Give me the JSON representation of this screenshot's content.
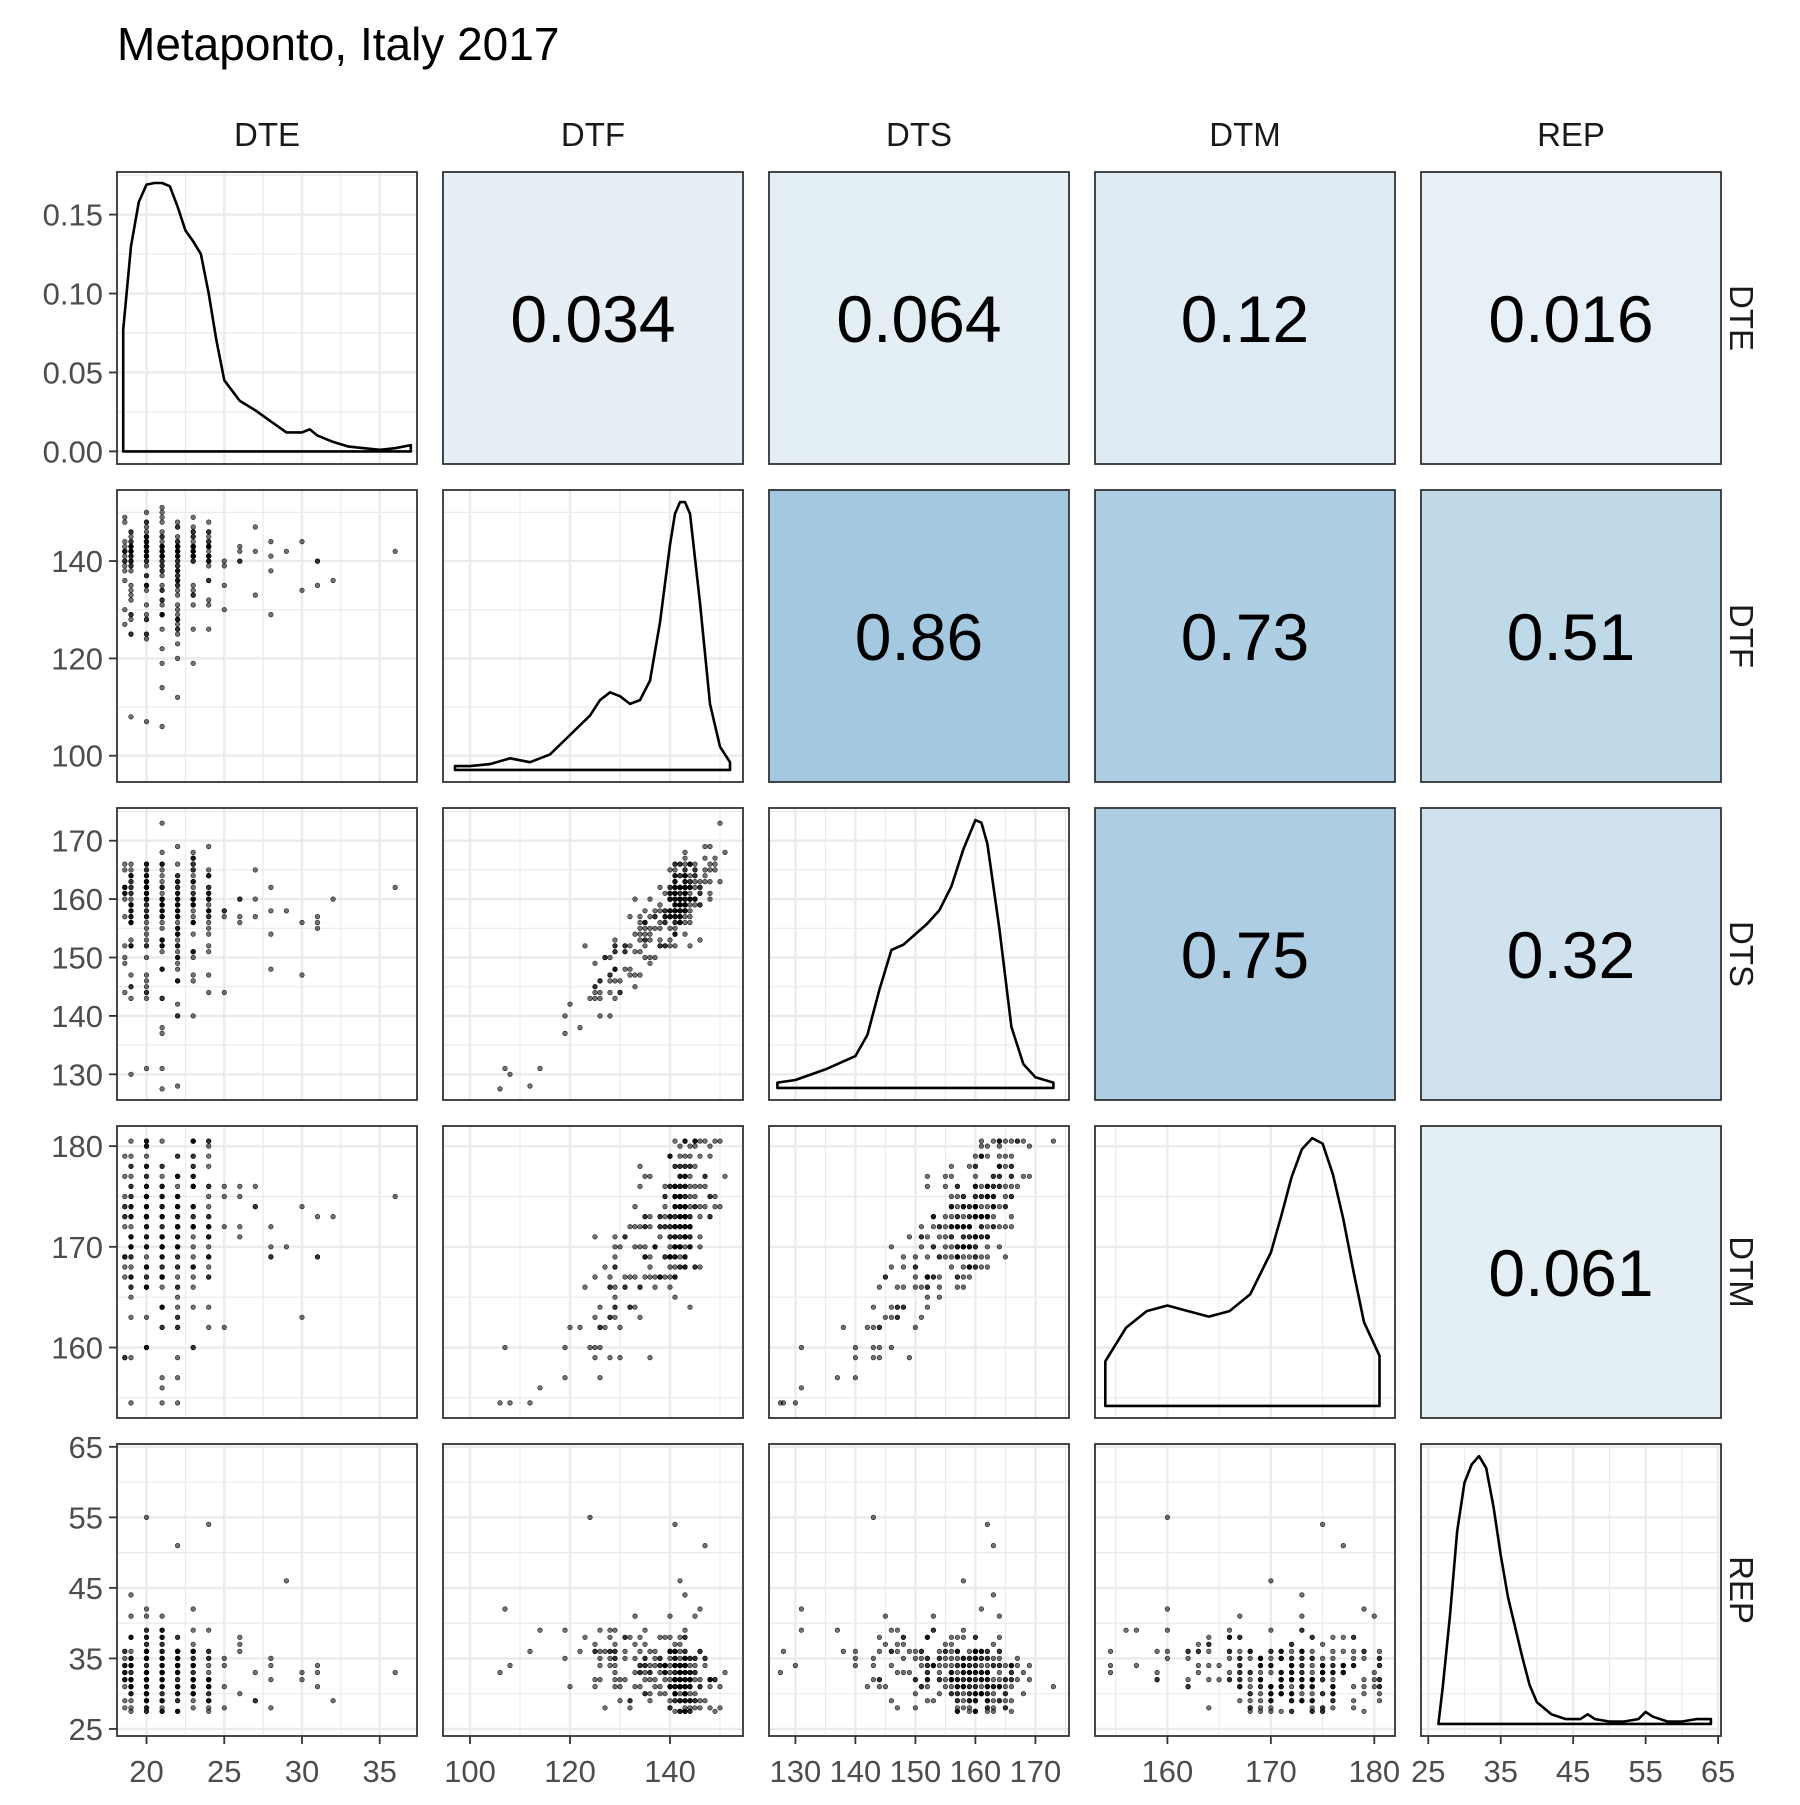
{
  "chart_data": {
    "type": "scatter",
    "title": "Metaponto, Italy 2017",
    "variables": [
      "DTE",
      "DTF",
      "DTS",
      "DTM",
      "REP"
    ],
    "axes": {
      "DTE": {
        "range": [
          18.1,
          37.4
        ],
        "ticks": [
          20,
          25,
          30,
          35
        ],
        "density_ticks": [
          0.0,
          0.05,
          0.1,
          0.15
        ],
        "density_range": [
          -0.008,
          0.177
        ]
      },
      "DTF": {
        "range": [
          94.6,
          154.6
        ],
        "ticks": [
          100,
          120,
          140
        ]
      },
      "DTS": {
        "range": [
          125.6,
          175.6
        ],
        "ticks": [
          130,
          140,
          150,
          160,
          170
        ]
      },
      "DTM": {
        "range": [
          153.0,
          182.0
        ],
        "ticks": [
          160,
          170,
          180
        ]
      },
      "REP": {
        "range": [
          24.0,
          65.4
        ],
        "ticks": [
          25,
          35,
          45,
          55,
          65
        ]
      }
    },
    "correlations": [
      {
        "row": "DTE",
        "col": "DTF",
        "label": "0.034",
        "value": 0.034
      },
      {
        "row": "DTE",
        "col": "DTS",
        "label": "0.064",
        "value": 0.064
      },
      {
        "row": "DTE",
        "col": "DTM",
        "label": "0.12",
        "value": 0.12
      },
      {
        "row": "DTE",
        "col": "REP",
        "label": "0.016",
        "value": 0.016
      },
      {
        "row": "DTF",
        "col": "DTS",
        "label": "0.86",
        "value": 0.86
      },
      {
        "row": "DTF",
        "col": "DTM",
        "label": "0.73",
        "value": 0.73
      },
      {
        "row": "DTF",
        "col": "REP",
        "label": "0.51",
        "value": 0.51
      },
      {
        "row": "DTS",
        "col": "DTM",
        "label": "0.75",
        "value": 0.75
      },
      {
        "row": "DTS",
        "col": "REP",
        "label": "0.32",
        "value": 0.32
      },
      {
        "row": "DTM",
        "col": "REP",
        "label": "0.061",
        "value": 0.061
      }
    ],
    "densities": {
      "DTE": {
        "x": [
          18.5,
          18.5,
          19,
          19.5,
          20,
          20.5,
          21,
          21.5,
          22,
          22.5,
          23,
          23.5,
          24,
          24.5,
          25,
          26,
          27,
          28,
          29,
          30,
          30.5,
          31,
          32,
          33,
          34,
          35,
          36,
          37
        ],
        "y": [
          0,
          0.077,
          0.13,
          0.158,
          0.169,
          0.17,
          0.17,
          0.168,
          0.155,
          0.14,
          0.133,
          0.125,
          0.1,
          0.07,
          0.045,
          0.032,
          0.026,
          0.019,
          0.012,
          0.012,
          0.014,
          0.01,
          0.006,
          0.003,
          0.002,
          0.001,
          0.002,
          0.004
        ]
      },
      "DTF": {
        "x": [
          97,
          100,
          104,
          108,
          112,
          116,
          120,
          124,
          126,
          128,
          130,
          132,
          134,
          136,
          138,
          140,
          141,
          142,
          143,
          144,
          146,
          148,
          150,
          152
        ],
        "y": [
          0.001,
          0.001,
          0.0015,
          0.003,
          0.002,
          0.004,
          0.009,
          0.014,
          0.018,
          0.02,
          0.019,
          0.017,
          0.018,
          0.023,
          0.038,
          0.058,
          0.066,
          0.069,
          0.069,
          0.066,
          0.043,
          0.017,
          0.006,
          0.002
        ]
      },
      "DTS": {
        "x": [
          127,
          130,
          135,
          140,
          142,
          144,
          146,
          148,
          150,
          152,
          154,
          156,
          158,
          160,
          161,
          162,
          164,
          166,
          168,
          170,
          173
        ],
        "y": [
          0.002,
          0.003,
          0.007,
          0.012,
          0.02,
          0.037,
          0.052,
          0.054,
          0.058,
          0.062,
          0.067,
          0.076,
          0.09,
          0.101,
          0.1,
          0.092,
          0.06,
          0.023,
          0.009,
          0.004,
          0.002
        ]
      },
      "DTM": {
        "x": [
          154,
          156,
          158,
          160,
          162,
          164,
          166,
          168,
          170,
          171,
          172,
          173,
          174,
          175,
          176,
          177,
          178,
          179,
          180.5
        ],
        "y": [
          0.016,
          0.028,
          0.034,
          0.036,
          0.034,
          0.032,
          0.034,
          0.04,
          0.055,
          0.068,
          0.082,
          0.092,
          0.096,
          0.094,
          0.083,
          0.067,
          0.048,
          0.03,
          0.018
        ]
      },
      "REP": {
        "x": [
          26.4,
          27,
          28,
          29,
          30,
          31,
          32,
          33,
          34,
          35,
          36,
          37,
          38,
          39,
          40,
          42,
          44,
          46,
          47,
          48,
          50,
          52,
          54,
          55,
          56,
          58,
          60,
          62,
          64
        ],
        "y": [
          0,
          0.03,
          0.09,
          0.16,
          0.2,
          0.215,
          0.222,
          0.212,
          0.18,
          0.14,
          0.105,
          0.08,
          0.055,
          0.032,
          0.018,
          0.008,
          0.004,
          0.004,
          0.008,
          0.004,
          0.002,
          0.002,
          0.004,
          0.01,
          0.006,
          0.002,
          0.002,
          0.004,
          0.004
        ]
      }
    }
  }
}
